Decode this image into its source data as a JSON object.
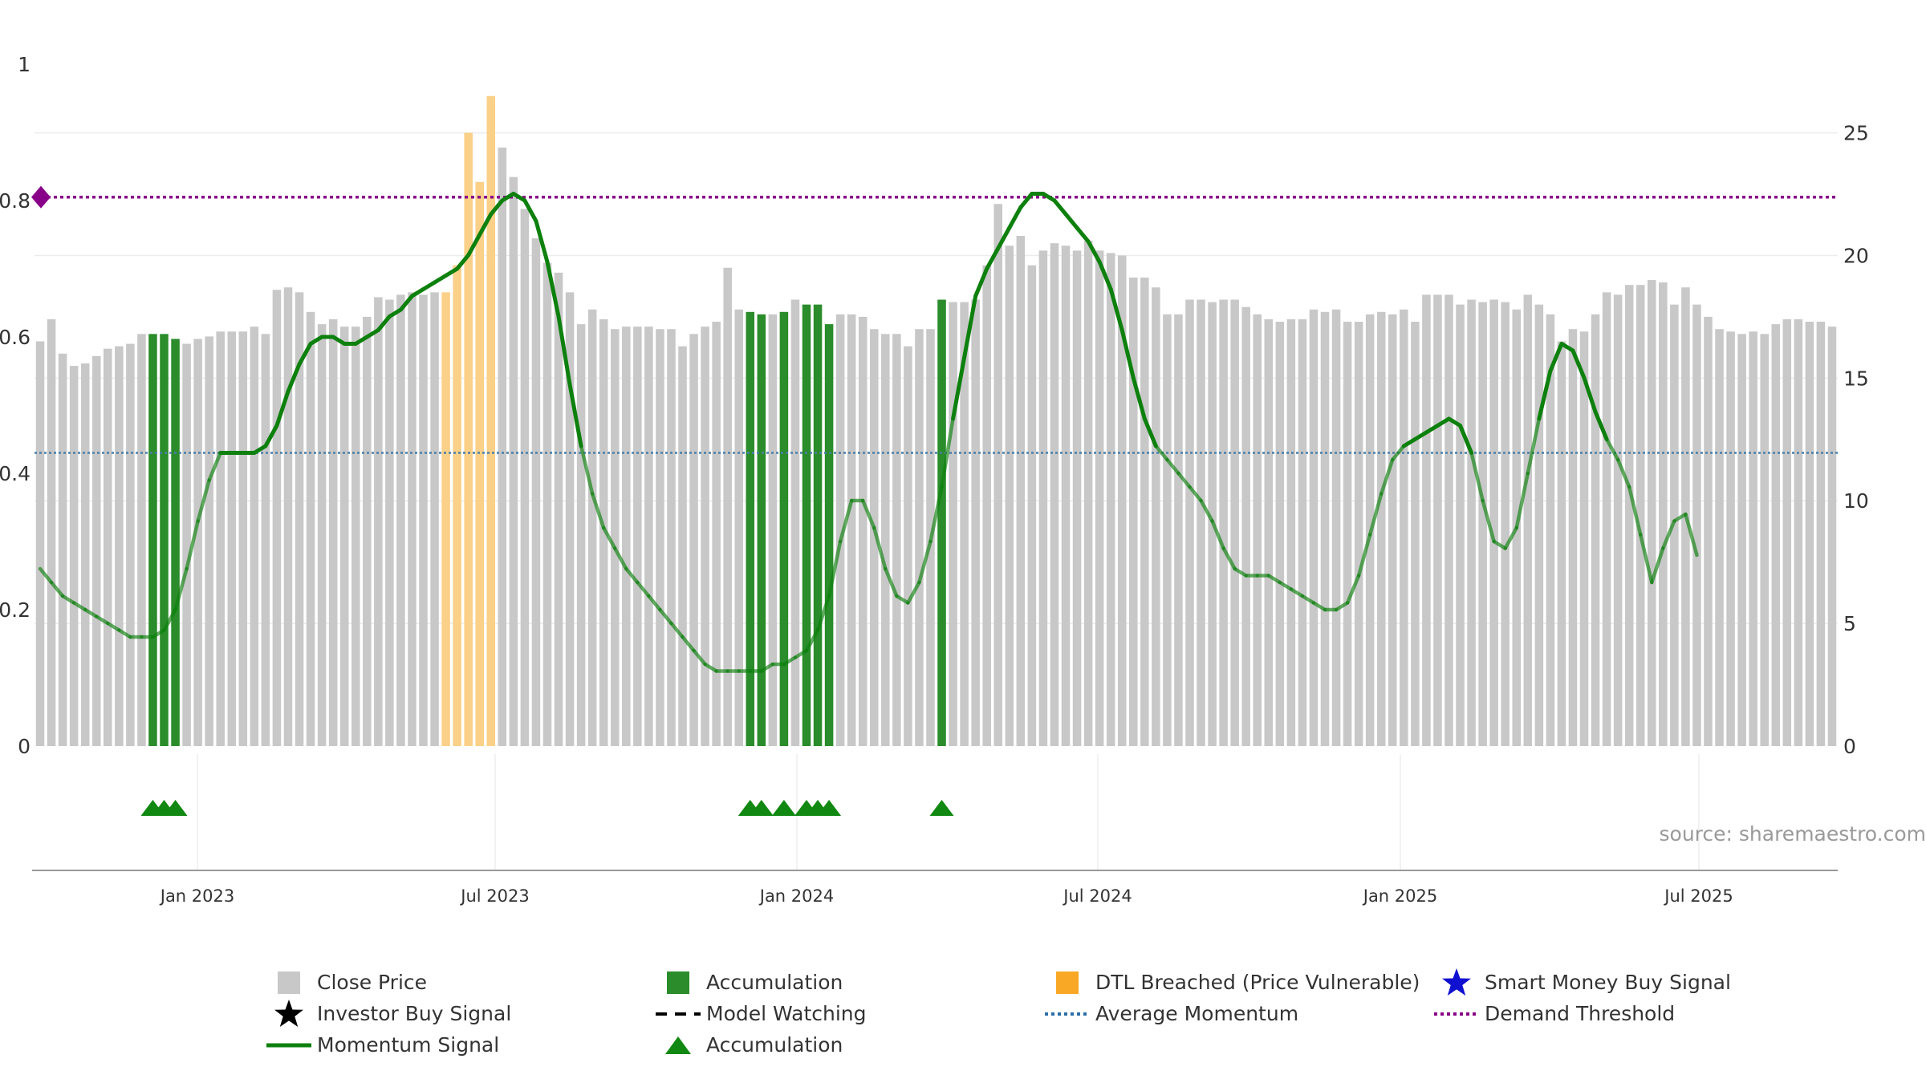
{
  "chart_data": {
    "type": "bar",
    "x_tick_labels": [
      "Jan 2023",
      "Jul 2023",
      "Jan 2024",
      "Jul 2024",
      "Jan 2025",
      "Jul 2025"
    ],
    "left_axis": {
      "ticks": [
        "1",
        "0.8",
        "0.6",
        "0.4",
        "0.2",
        "0"
      ],
      "ylim": [
        0,
        1
      ]
    },
    "right_axis": {
      "ticks": [
        "25",
        "20",
        "15",
        "10",
        "5",
        "0"
      ],
      "ylim": [
        0,
        27.8
      ]
    },
    "close_price": [
      16.5,
      17.4,
      16.0,
      15.5,
      15.6,
      15.9,
      16.2,
      16.3,
      16.4,
      16.8,
      16.8,
      16.8,
      16.6,
      16.4,
      16.6,
      16.7,
      16.9,
      16.9,
      16.9,
      17.1,
      16.8,
      18.6,
      18.7,
      18.5,
      17.7,
      17.2,
      17.4,
      17.1,
      17.1,
      17.5,
      18.3,
      18.2,
      18.4,
      18.5,
      18.4,
      18.5,
      18.5,
      19.6,
      25.0,
      23.0,
      26.5,
      24.4,
      23.2,
      21.9,
      20.7,
      19.7,
      19.3,
      18.5,
      17.2,
      17.8,
      17.4,
      17.0,
      17.1,
      17.1,
      17.1,
      17.0,
      17.0,
      16.3,
      16.8,
      17.1,
      17.3,
      19.5,
      17.8,
      17.7,
      17.6,
      17.6,
      17.7,
      18.2,
      18.0,
      18.0,
      17.2,
      17.6,
      17.6,
      17.5,
      17.0,
      16.8,
      16.8,
      16.3,
      17.0,
      17.0,
      18.2,
      18.1,
      18.1,
      18.2,
      19.6,
      22.1,
      20.4,
      20.8,
      19.6,
      20.2,
      20.5,
      20.4,
      20.2,
      20.6,
      20.2,
      20.1,
      20.0,
      19.1,
      19.1,
      18.7,
      17.6,
      17.6,
      18.2,
      18.2,
      18.1,
      18.2,
      18.2,
      17.9,
      17.6,
      17.4,
      17.3,
      17.4,
      17.4,
      17.8,
      17.7,
      17.8,
      17.3,
      17.3,
      17.6,
      17.7,
      17.6,
      17.8,
      17.3,
      18.4,
      18.4,
      18.4,
      18.0,
      18.2,
      18.1,
      18.2,
      18.1,
      17.8,
      18.4,
      18.0,
      17.6,
      16.5,
      17.0,
      16.9,
      17.6,
      18.5,
      18.4,
      18.8,
      18.8,
      19.0,
      18.9,
      18.0,
      18.7,
      18.0,
      17.5,
      17.0,
      16.9,
      16.8,
      16.9,
      16.8,
      17.2,
      17.4,
      17.4,
      17.3,
      17.3,
      17.1
    ],
    "accumulation_bar_indices": [
      10,
      11,
      12,
      63,
      64,
      66,
      68,
      69,
      70,
      80
    ],
    "dtl_breached_bar_indices": [
      36,
      37,
      38,
      39,
      40
    ],
    "accumulation_marker_indices": [
      10,
      11,
      12,
      63,
      64,
      66,
      68,
      69,
      70,
      80
    ],
    "momentum_signal": [
      0.26,
      0.24,
      0.22,
      0.21,
      0.2,
      0.19,
      0.18,
      0.17,
      0.16,
      0.16,
      0.16,
      0.17,
      0.2,
      0.26,
      0.33,
      0.39,
      0.43,
      0.43,
      0.43,
      0.43,
      0.44,
      0.47,
      0.52,
      0.56,
      0.59,
      0.6,
      0.6,
      0.59,
      0.59,
      0.6,
      0.61,
      0.63,
      0.64,
      0.66,
      0.67,
      0.68,
      0.69,
      0.7,
      0.72,
      0.75,
      0.78,
      0.8,
      0.81,
      0.8,
      0.77,
      0.71,
      0.63,
      0.53,
      0.44,
      0.37,
      0.32,
      0.29,
      0.26,
      0.24,
      0.22,
      0.2,
      0.18,
      0.16,
      0.14,
      0.12,
      0.11,
      0.11,
      0.11,
      0.11,
      0.11,
      0.12,
      0.12,
      0.13,
      0.14,
      0.17,
      0.22,
      0.3,
      0.36,
      0.36,
      0.32,
      0.26,
      0.22,
      0.21,
      0.24,
      0.3,
      0.38,
      0.48,
      0.57,
      0.66,
      0.7,
      0.73,
      0.76,
      0.79,
      0.81,
      0.81,
      0.8,
      0.78,
      0.76,
      0.74,
      0.71,
      0.67,
      0.61,
      0.54,
      0.48,
      0.44,
      0.42,
      0.4,
      0.38,
      0.36,
      0.33,
      0.29,
      0.26,
      0.25,
      0.25,
      0.25,
      0.24,
      0.23,
      0.22,
      0.21,
      0.2,
      0.2,
      0.21,
      0.25,
      0.31,
      0.37,
      0.42,
      0.44,
      0.45,
      0.46,
      0.47,
      0.48,
      0.47,
      0.43,
      0.36,
      0.3,
      0.29,
      0.32,
      0.4,
      0.48,
      0.55,
      0.59,
      0.58,
      0.54,
      0.49,
      0.45,
      0.42,
      0.38,
      0.31,
      0.24,
      0.29,
      0.33,
      0.34,
      0.28
    ],
    "average_momentum": 0.43,
    "demand_threshold": 0.805,
    "legend": {
      "close_price": "Close Price",
      "accumulation_bar": "Accumulation",
      "dtl_breached": "DTL Breached (Price Vulnerable)",
      "smart_money": "Smart Money Buy Signal",
      "investor_buy": "Investor Buy Signal",
      "model_watching": "Model Watching",
      "average_momentum": "Average Momentum",
      "demand_threshold": "Demand Threshold",
      "momentum_signal": "Momentum Signal",
      "accumulation_marker": "Accumulation"
    },
    "source": "source: sharemaestro.com"
  },
  "colors": {
    "close_price": "#c8c8c8",
    "accumulation": "#2a8c2a",
    "dtl_breached": "#fbd088",
    "momentum": "#0d800d",
    "average_momentum": "#4a7fa8",
    "demand_threshold": "#880088",
    "smart_money": "#1010d0",
    "investor_buy": "#000000",
    "marker": "#118811"
  }
}
